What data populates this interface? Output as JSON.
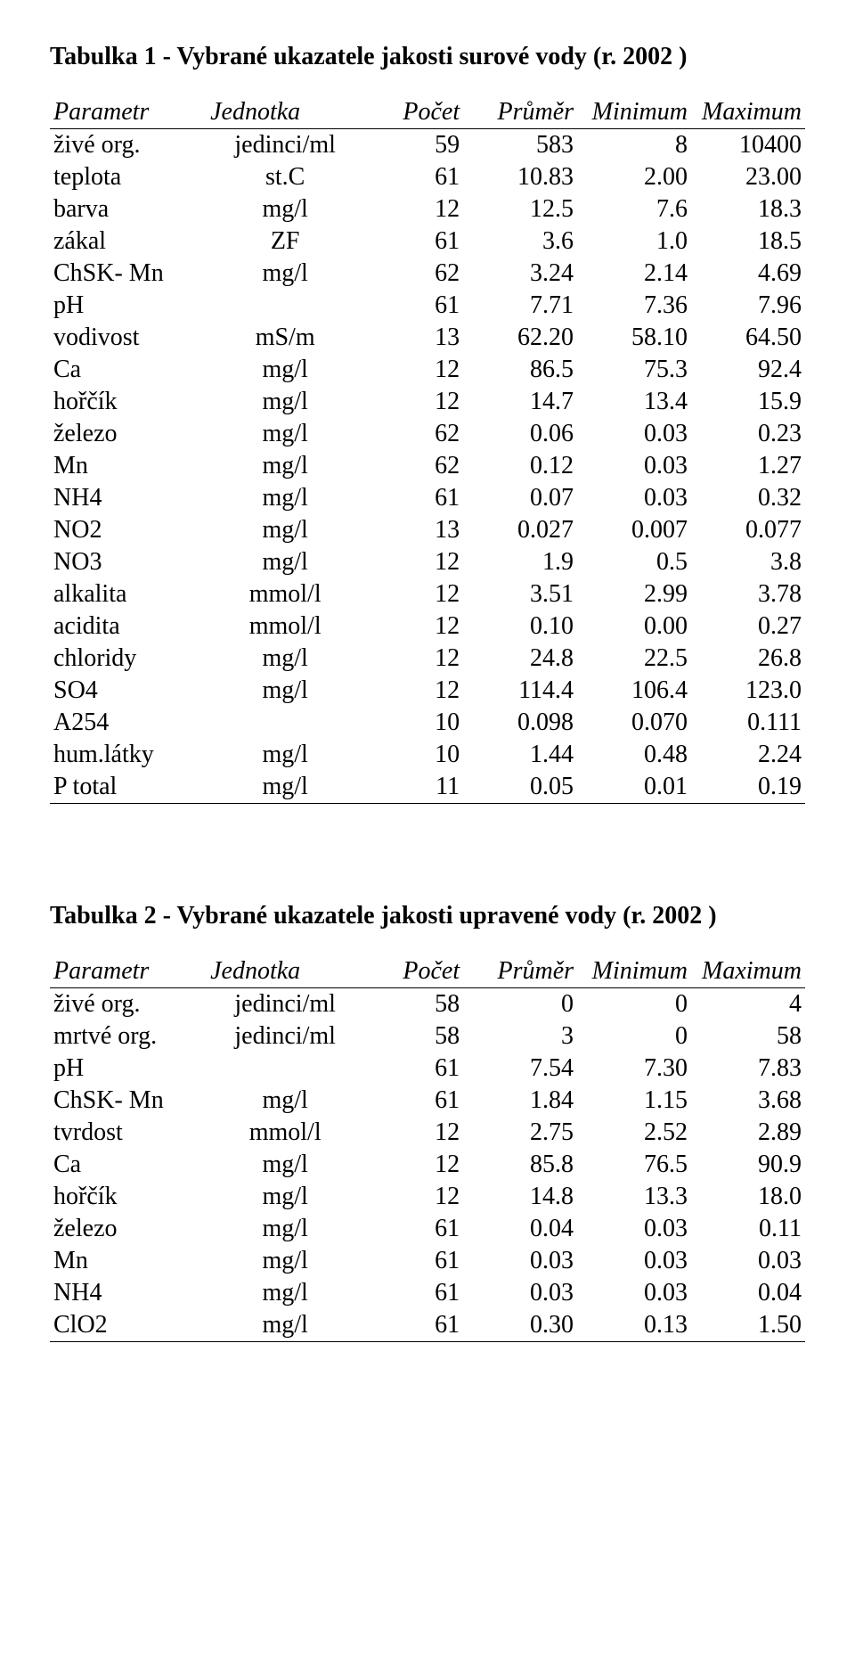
{
  "table1": {
    "title": "Tabulka 1 - Vybrané ukazatele jakosti surové vody (r. 2002 )",
    "headers": {
      "param": "Parametr",
      "unit": "Jednotka",
      "count": "Počet",
      "mean": "Průměr",
      "min": "Minimum",
      "max": "Maximum"
    },
    "rows": [
      {
        "param": "živé org.",
        "unit": "jedinci/ml",
        "count": "59",
        "mean": "583",
        "min": "8",
        "max": "10400"
      },
      {
        "param": "teplota",
        "unit": "st.C",
        "count": "61",
        "mean": "10.83",
        "min": "2.00",
        "max": "23.00"
      },
      {
        "param": "barva",
        "unit": "mg/l",
        "count": "12",
        "mean": "12.5",
        "min": "7.6",
        "max": "18.3"
      },
      {
        "param": "zákal",
        "unit": "ZF",
        "count": "61",
        "mean": "3.6",
        "min": "1.0",
        "max": "18.5"
      },
      {
        "param": "ChSK- Mn",
        "unit": "mg/l",
        "count": "62",
        "mean": "3.24",
        "min": "2.14",
        "max": "4.69"
      },
      {
        "param": "pH",
        "unit": "",
        "count": "61",
        "mean": "7.71",
        "min": "7.36",
        "max": "7.96"
      },
      {
        "param": "vodivost",
        "unit": "mS/m",
        "count": "13",
        "mean": "62.20",
        "min": "58.10",
        "max": "64.50"
      },
      {
        "param": "Ca",
        "unit": "mg/l",
        "count": "12",
        "mean": "86.5",
        "min": "75.3",
        "max": "92.4"
      },
      {
        "param": "hořčík",
        "unit": "mg/l",
        "count": "12",
        "mean": "14.7",
        "min": "13.4",
        "max": "15.9"
      },
      {
        "param": "železo",
        "unit": "mg/l",
        "count": "62",
        "mean": "0.06",
        "min": "0.03",
        "max": "0.23"
      },
      {
        "param": "Mn",
        "unit": "mg/l",
        "count": "62",
        "mean": "0.12",
        "min": "0.03",
        "max": "1.27"
      },
      {
        "param": "NH4",
        "unit": "mg/l",
        "count": "61",
        "mean": "0.07",
        "min": "0.03",
        "max": "0.32"
      },
      {
        "param": "NO2",
        "unit": "mg/l",
        "count": "13",
        "mean": "0.027",
        "min": "0.007",
        "max": "0.077"
      },
      {
        "param": "NO3",
        "unit": "mg/l",
        "count": "12",
        "mean": "1.9",
        "min": "0.5",
        "max": "3.8"
      },
      {
        "param": "alkalita",
        "unit": "mmol/l",
        "count": "12",
        "mean": "3.51",
        "min": "2.99",
        "max": "3.78"
      },
      {
        "param": "acidita",
        "unit": "mmol/l",
        "count": "12",
        "mean": "0.10",
        "min": "0.00",
        "max": "0.27"
      },
      {
        "param": "chloridy",
        "unit": "mg/l",
        "count": "12",
        "mean": "24.8",
        "min": "22.5",
        "max": "26.8"
      },
      {
        "param": "SO4",
        "unit": "mg/l",
        "count": "12",
        "mean": "114.4",
        "min": "106.4",
        "max": "123.0"
      },
      {
        "param": "A254",
        "unit": "",
        "count": "10",
        "mean": "0.098",
        "min": "0.070",
        "max": "0.111"
      },
      {
        "param": "hum.látky",
        "unit": "mg/l",
        "count": "10",
        "mean": "1.44",
        "min": "0.48",
        "max": "2.24"
      },
      {
        "param": "P total",
        "unit": "mg/l",
        "count": "11",
        "mean": "0.05",
        "min": "0.01",
        "max": "0.19"
      }
    ]
  },
  "table2": {
    "title": "Tabulka 2  - Vybrané ukazatele jakosti upravené vody (r. 2002 )",
    "headers": {
      "param": "Parametr",
      "unit": "Jednotka",
      "count": "Počet",
      "mean": "Průměr",
      "min": "Minimum",
      "max": "Maximum"
    },
    "rows": [
      {
        "param": "živé org.",
        "unit": "jedinci/ml",
        "count": "58",
        "mean": "0",
        "min": "0",
        "max": "4"
      },
      {
        "param": "mrtvé org.",
        "unit": "jedinci/ml",
        "count": "58",
        "mean": "3",
        "min": "0",
        "max": "58"
      },
      {
        "param": "pH",
        "unit": "",
        "count": "61",
        "mean": "7.54",
        "min": "7.30",
        "max": "7.83"
      },
      {
        "param": "ChSK- Mn",
        "unit": "mg/l",
        "count": "61",
        "mean": "1.84",
        "min": "1.15",
        "max": "3.68"
      },
      {
        "param": "tvrdost",
        "unit": "mmol/l",
        "count": "12",
        "mean": "2.75",
        "min": "2.52",
        "max": "2.89"
      },
      {
        "param": "Ca",
        "unit": "mg/l",
        "count": "12",
        "mean": "85.8",
        "min": "76.5",
        "max": "90.9"
      },
      {
        "param": "hořčík",
        "unit": "mg/l",
        "count": "12",
        "mean": "14.8",
        "min": "13.3",
        "max": "18.0"
      },
      {
        "param": "železo",
        "unit": "mg/l",
        "count": "61",
        "mean": "0.04",
        "min": "0.03",
        "max": "0.11"
      },
      {
        "param": "Mn",
        "unit": "mg/l",
        "count": "61",
        "mean": "0.03",
        "min": "0.03",
        "max": "0.03"
      },
      {
        "param": "NH4",
        "unit": "mg/l",
        "count": "61",
        "mean": "0.03",
        "min": "0.03",
        "max": "0.04"
      },
      {
        "param": "ClO2",
        "unit": "mg/l",
        "count": "61",
        "mean": "0.30",
        "min": "0.13",
        "max": "1.50"
      }
    ]
  }
}
